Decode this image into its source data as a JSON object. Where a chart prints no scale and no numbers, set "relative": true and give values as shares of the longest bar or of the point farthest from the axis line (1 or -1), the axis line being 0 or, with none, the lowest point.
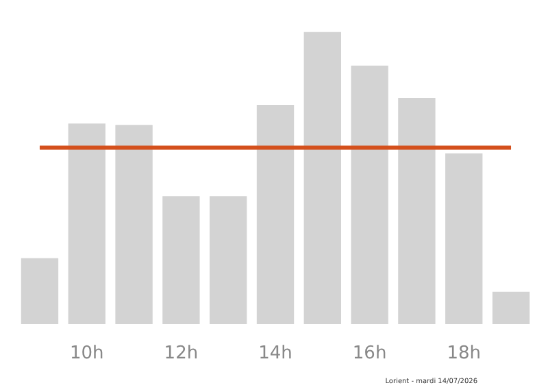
{
  "chart_data": {
    "type": "bar",
    "relative": true,
    "categories": [
      null,
      "10h",
      null,
      "12h",
      null,
      "14h",
      null,
      "16h",
      null,
      "18h",
      null
    ],
    "values": [
      0.226,
      0.687,
      0.682,
      0.438,
      0.438,
      0.751,
      1,
      0.885,
      0.774,
      0.585,
      0.111
    ],
    "color": "#d3d3d3",
    "ref_lines": [
      {
        "axis": "y",
        "value": 0.604,
        "color": "#d4501c"
      }
    ],
    "annotations": [
      "Lorient - mardi 14/07/2026"
    ],
    "grid": false
  }
}
